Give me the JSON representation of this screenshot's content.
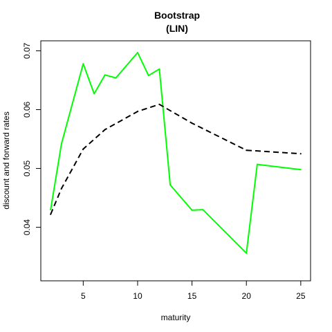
{
  "chart_data": {
    "type": "line",
    "title": "Bootstrap",
    "subtitle": "(LIN)",
    "xlabel": "maturity",
    "ylabel": "discount and forward rates",
    "xlim": [
      1.1,
      25.9
    ],
    "ylim": [
      0.0309,
      0.0717
    ],
    "x_ticks": [
      5,
      10,
      15,
      20,
      25
    ],
    "x_tick_labels": [
      "5",
      "10",
      "15",
      "20",
      "25"
    ],
    "y_ticks": [
      0.04,
      0.05,
      0.06,
      0.07
    ],
    "y_tick_labels": [
      "0.04",
      "0.05",
      "0.06",
      "0.07"
    ],
    "grid": false,
    "series": [
      {
        "color": "#00ff00",
        "dash": "solid",
        "x": [
          2,
          3,
          5,
          6,
          7,
          8,
          10,
          11,
          12,
          13,
          15,
          16,
          20,
          21,
          25
        ],
        "y": [
          0.043,
          0.0542,
          0.0678,
          0.0627,
          0.0659,
          0.0654,
          0.0697,
          0.0658,
          0.0669,
          0.0472,
          0.0429,
          0.043,
          0.0356,
          0.0507,
          0.0498
        ]
      },
      {
        "color": "#000000",
        "dash": "dashed",
        "x": [
          2,
          3,
          5,
          7,
          10,
          12,
          15,
          20,
          25
        ],
        "y": [
          0.0422,
          0.0466,
          0.0533,
          0.0566,
          0.0597,
          0.0609,
          0.0577,
          0.0531,
          0.0525
        ]
      }
    ]
  }
}
